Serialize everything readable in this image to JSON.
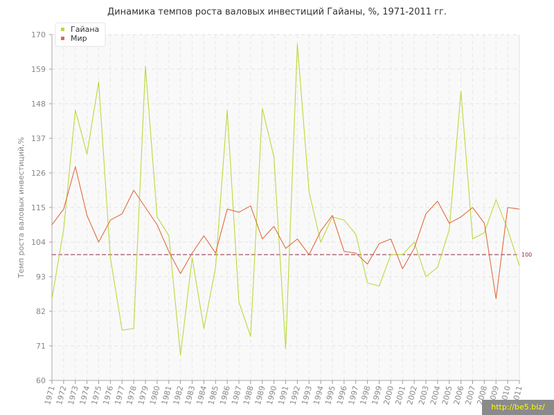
{
  "chart_data": {
    "type": "line",
    "title": "Динамика темпов роста валовых инвестиций Гайаны, %, 1971-2011 гг.",
    "ylabel": "Темп роста валовых инвестиций,%",
    "xlabel": "",
    "ylim": [
      60,
      170
    ],
    "yticks": [
      60,
      71,
      82,
      93,
      104,
      115,
      126,
      137,
      148,
      159,
      170
    ],
    "grid": true,
    "legend_position": "top-left",
    "reference_line": {
      "value": 100,
      "label": "100",
      "color": "#8b2942"
    },
    "x": [
      "1971",
      "1972",
      "1973",
      "1974",
      "1975",
      "1976",
      "1977",
      "1978",
      "1979",
      "1980",
      "1981",
      "1982",
      "1983",
      "1984",
      "1985",
      "1986",
      "1987",
      "1988",
      "1989",
      "1990",
      "1991",
      "1992",
      "1993",
      "1994",
      "1995",
      "1996",
      "1997",
      "1998",
      "1999",
      "2000",
      "2001",
      "2002",
      "2003",
      "2004",
      "2005",
      "2006",
      "2007",
      "2008",
      "2009",
      "2010",
      "2011"
    ],
    "series": [
      {
        "name": "Гайана",
        "color": "#b8d93a",
        "values": [
          86,
          108,
          146,
          132,
          155,
          99,
          76,
          76.5,
          160,
          112,
          106,
          68,
          99,
          76.5,
          96,
          146,
          85,
          74,
          146.5,
          131,
          70,
          167,
          120,
          104,
          112,
          111,
          106.5,
          91,
          90,
          100,
          100,
          104,
          93,
          96,
          108,
          152,
          105,
          107,
          117.5,
          108,
          96.5
        ]
      },
      {
        "name": "Мир",
        "color": "#e06a3c",
        "values": [
          109.5,
          114.5,
          128,
          112.5,
          104,
          111,
          113,
          120.5,
          115,
          109.5,
          101,
          94,
          100.5,
          106,
          100.5,
          114.5,
          113.5,
          115.5,
          105,
          109,
          102,
          105,
          100,
          107.5,
          112.5,
          101,
          100.5,
          97,
          103.5,
          105,
          95.5,
          102,
          113,
          117,
          110,
          112,
          115,
          110,
          86,
          115,
          114.5
        ]
      }
    ]
  },
  "watermark": "http://be5.biz/"
}
